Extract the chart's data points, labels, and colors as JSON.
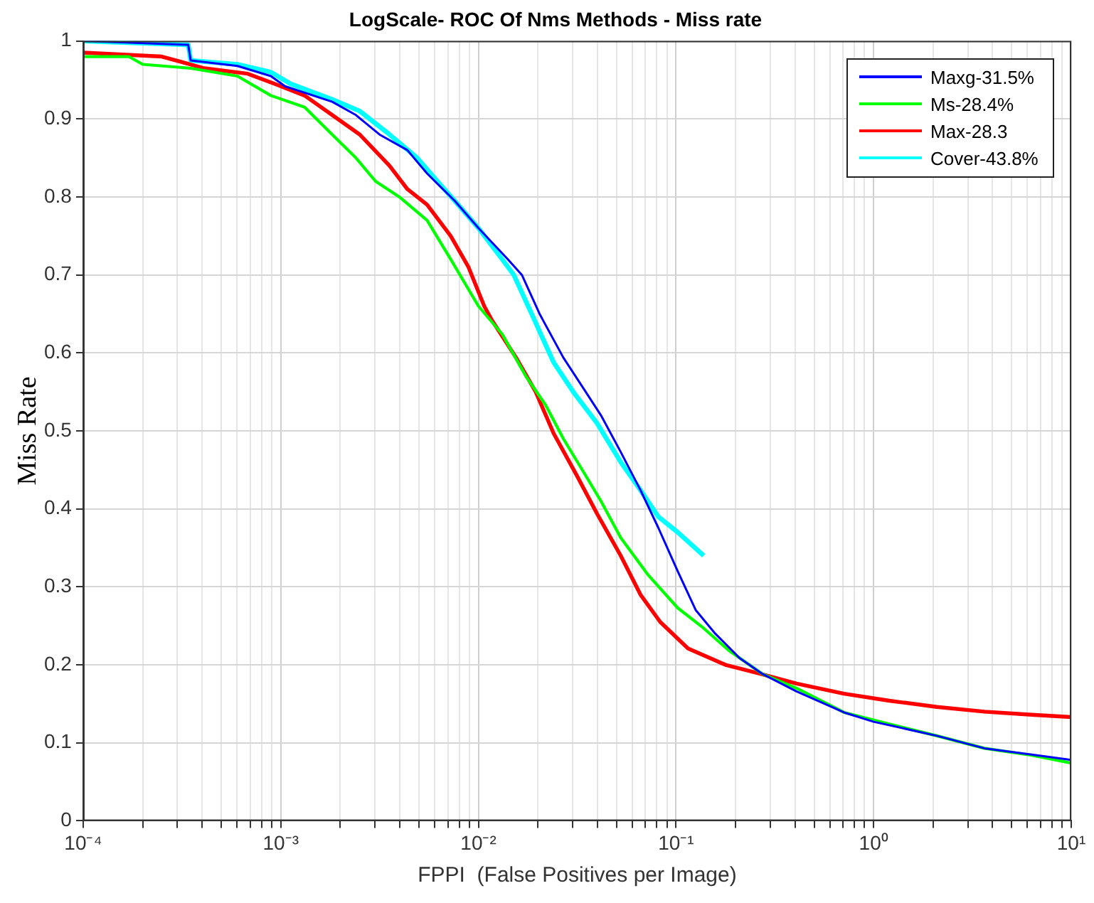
{
  "chart_data": {
    "type": "line",
    "title": "LogScale- ROC Of Nms Methods - Miss rate",
    "xlabel": "FPPI  (False Positives per Image)",
    "ylabel": "Miss Rate",
    "log": "x",
    "grid": true,
    "legend": "top right",
    "marker": "none",
    "line_style": "solid",
    "xlim": [
      0.0001,
      10
    ],
    "ylim": [
      0,
      1
    ],
    "xticks": [
      {
        "value": 0.0001,
        "label": "10⁻⁴"
      },
      {
        "value": 0.0002,
        "label": null
      },
      {
        "value": 0.0003,
        "label": null
      },
      {
        "value": 0.0004,
        "label": null
      },
      {
        "value": 0.0005,
        "label": null
      },
      {
        "value": 0.0006,
        "label": null
      },
      {
        "value": 0.0007,
        "label": null
      },
      {
        "value": 0.0008,
        "label": null
      },
      {
        "value": 0.0009,
        "label": null
      },
      {
        "value": 0.001,
        "label": "10⁻³"
      },
      {
        "value": 0.002,
        "label": null
      },
      {
        "value": 0.003,
        "label": null
      },
      {
        "value": 0.004,
        "label": null
      },
      {
        "value": 0.005,
        "label": null
      },
      {
        "value": 0.006,
        "label": null
      },
      {
        "value": 0.007,
        "label": null
      },
      {
        "value": 0.008,
        "label": null
      },
      {
        "value": 0.009,
        "label": null
      },
      {
        "value": 0.01,
        "label": "10⁻²"
      },
      {
        "value": 0.02,
        "label": null
      },
      {
        "value": 0.03,
        "label": null
      },
      {
        "value": 0.04,
        "label": null
      },
      {
        "value": 0.05,
        "label": null
      },
      {
        "value": 0.06,
        "label": null
      },
      {
        "value": 0.07,
        "label": null
      },
      {
        "value": 0.08,
        "label": null
      },
      {
        "value": 0.09,
        "label": null
      },
      {
        "value": 0.1,
        "label": "10⁻¹"
      },
      {
        "value": 0.2,
        "label": null
      },
      {
        "value": 0.3,
        "label": null
      },
      {
        "value": 0.4,
        "label": null
      },
      {
        "value": 0.5,
        "label": null
      },
      {
        "value": 0.6,
        "label": null
      },
      {
        "value": 0.7,
        "label": null
      },
      {
        "value": 0.8,
        "label": null
      },
      {
        "value": 0.9,
        "label": null
      },
      {
        "value": 1,
        "label": "10⁰"
      },
      {
        "value": 2,
        "label": null
      },
      {
        "value": 3,
        "label": null
      },
      {
        "value": 4,
        "label": null
      },
      {
        "value": 5,
        "label": null
      },
      {
        "value": 6,
        "label": null
      },
      {
        "value": 7,
        "label": null
      },
      {
        "value": 8,
        "label": null
      },
      {
        "value": 9,
        "label": null
      },
      {
        "value": 10,
        "label": "10¹"
      }
    ],
    "yticks": [
      0,
      0.1,
      0.2,
      0.3,
      0.4,
      0.5,
      0.6,
      0.7,
      0.8,
      0.9,
      1
    ],
    "series": [
      {
        "name": "Maxg-31.5%",
        "color": "#0000ff",
        "x": [
          0.0001,
          0.00034,
          0.00035,
          0.000603,
          0.000891,
          0.00105,
          0.00182,
          0.0024,
          0.00316,
          0.00437,
          0.0055,
          0.00759,
          0.01,
          0.0141,
          0.0166,
          0.0204,
          0.0269,
          0.0339,
          0.0417,
          0.0525,
          0.0661,
          0.0813,
          0.102,
          0.126,
          0.158,
          0.209,
          0.275,
          0.407,
          0.708,
          1,
          2.09,
          3.63,
          6.31,
          10
        ],
        "values": [
          1,
          0.995,
          0.975,
          0.968,
          0.955,
          0.942,
          0.922,
          0.905,
          0.88,
          0.86,
          0.83,
          0.795,
          0.76,
          0.72,
          0.7,
          0.65,
          0.594,
          0.555,
          0.52,
          0.473,
          0.424,
          0.376,
          0.32,
          0.27,
          0.24,
          0.209,
          0.188,
          0.166,
          0.139,
          0.127,
          0.109,
          0.093,
          0.085,
          0.078
        ]
      },
      {
        "name": "Ms-28.4%",
        "color": "#00ff00",
        "x": [
          0.0001,
          0.00017,
          0.0002,
          0.00035,
          0.000603,
          0.000891,
          0.00132,
          0.00182,
          0.0024,
          0.00302,
          0.00398,
          0.0055,
          0.00724,
          0.01,
          0.0132,
          0.0174,
          0.0219,
          0.0269,
          0.0339,
          0.0417,
          0.0525,
          0.0724,
          0.102,
          0.135,
          0.186,
          0.275,
          0.407,
          0.708,
          1.2,
          2.09,
          3.63,
          6.31,
          10
        ],
        "values": [
          0.98,
          0.98,
          0.97,
          0.965,
          0.955,
          0.93,
          0.915,
          0.88,
          0.85,
          0.82,
          0.8,
          0.77,
          0.72,
          0.66,
          0.624,
          0.57,
          0.533,
          0.49,
          0.448,
          0.41,
          0.363,
          0.315,
          0.273,
          0.249,
          0.218,
          0.188,
          0.17,
          0.139,
          0.124,
          0.109,
          0.093,
          0.084,
          0.074
        ]
      },
      {
        "name": "Max-28.3",
        "color": "#ff0000",
        "x": [
          0.0001,
          0.00025,
          0.00041,
          0.00068,
          0.000933,
          0.00132,
          0.00182,
          0.00251,
          0.00355,
          0.00437,
          0.0055,
          0.00724,
          0.00891,
          0.0107,
          0.0117,
          0.0155,
          0.0195,
          0.024,
          0.0316,
          0.0398,
          0.0525,
          0.0661,
          0.0832,
          0.115,
          0.178,
          0.263,
          0.407,
          0.708,
          1.2,
          2.09,
          3.63,
          6.31,
          10
        ],
        "values": [
          0.985,
          0.98,
          0.965,
          0.958,
          0.945,
          0.93,
          0.905,
          0.88,
          0.84,
          0.81,
          0.79,
          0.75,
          0.71,
          0.66,
          0.642,
          0.594,
          0.55,
          0.497,
          0.442,
          0.394,
          0.34,
          0.29,
          0.255,
          0.221,
          0.2,
          0.189,
          0.176,
          0.163,
          0.154,
          0.146,
          0.14,
          0.136,
          0.133
        ]
      },
      {
        "name": "Cover-43.8%",
        "color": "#00ffff",
        "x": [
          0.0001,
          0.00034,
          0.00035,
          0.000603,
          0.000891,
          0.00112,
          0.00182,
          0.00251,
          0.00355,
          0.0049,
          0.0062,
          0.00759,
          0.01,
          0.0132,
          0.0151,
          0.0186,
          0.024,
          0.0302,
          0.0398,
          0.0525,
          0.0661,
          0.0813,
          0.102,
          0.138
        ],
        "values": [
          1,
          0.995,
          0.975,
          0.97,
          0.96,
          0.945,
          0.925,
          0.91,
          0.88,
          0.85,
          0.82,
          0.795,
          0.76,
          0.72,
          0.7,
          0.65,
          0.588,
          0.55,
          0.51,
          0.46,
          0.424,
          0.39,
          0.37,
          0.34
        ]
      }
    ]
  }
}
